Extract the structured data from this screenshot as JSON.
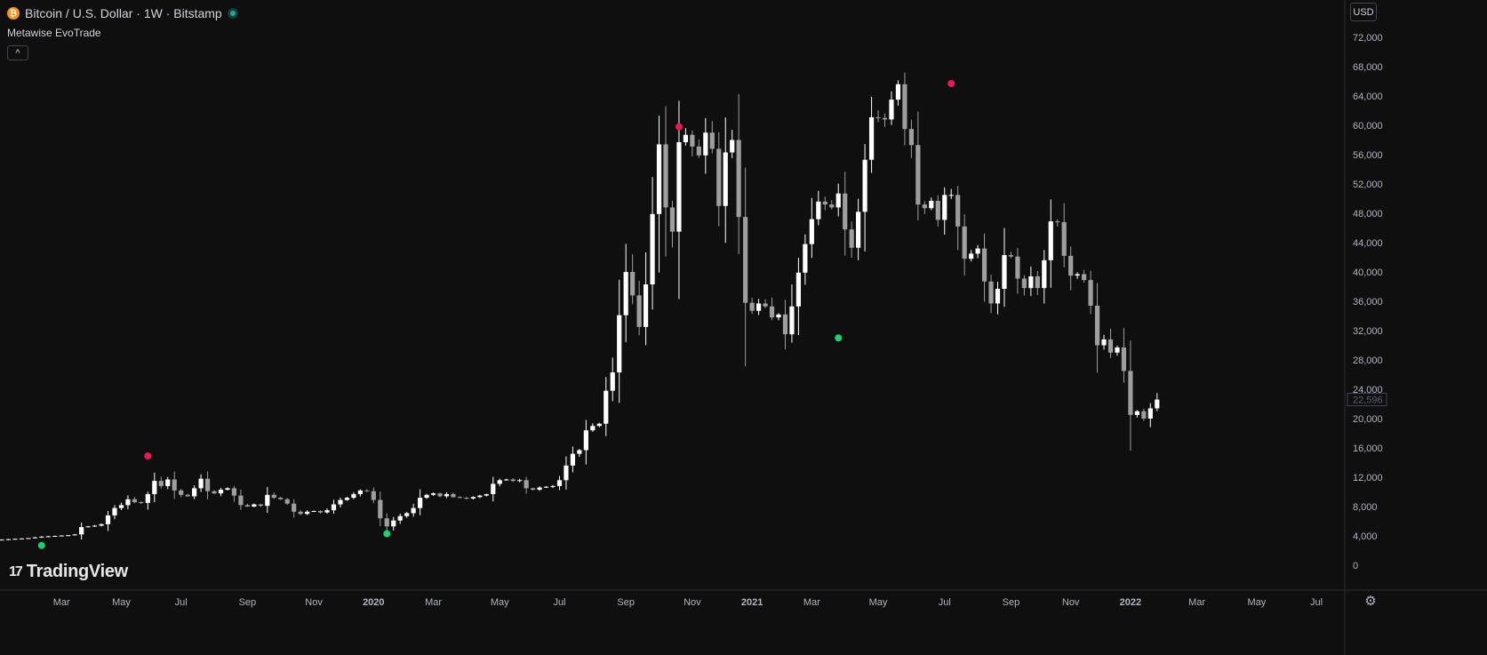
{
  "header": {
    "symbol_icon": "bitcoin-icon",
    "title": "Bitcoin / U.S. Dollar · 1W · Bitstamp",
    "status": "live-dot-icon"
  },
  "indicator": {
    "name": "Metawise EvoTrade",
    "collapse_icon": "chevron-up-icon"
  },
  "currency": {
    "label": "USD"
  },
  "logo": {
    "text": "TradingView"
  },
  "colors": {
    "background": "#0f0f0f",
    "up": "#ffffff",
    "down": "#9e9e9e",
    "sell_signal": "#f2164f",
    "buy_signal": "#1bd16b",
    "axis_text": "#b2b5be"
  },
  "chart_data": {
    "type": "candlestick",
    "interval": "1W",
    "title": "",
    "price_axis": {
      "ticks": [
        0,
        4000,
        8000,
        12000,
        16000,
        20000,
        24000,
        28000,
        32000,
        36000,
        40000,
        44000,
        48000,
        52000,
        56000,
        60000,
        64000,
        68000,
        72000
      ],
      "tick_labels": [
        "0",
        "4,000",
        "8,000",
        "12,000",
        "16,000",
        "20,000",
        "24,000",
        "28,000",
        "32,000",
        "36,000",
        "40,000",
        "44,000",
        "48,000",
        "52,000",
        "56,000",
        "60,000",
        "64,000",
        "68,000",
        "72,000"
      ],
      "last_price": 22596,
      "last_price_label": "22,596"
    },
    "time_axis": {
      "labels": [
        "Mar",
        "May",
        "Jul",
        "Sep",
        "Nov",
        "2020",
        "Mar",
        "May",
        "Jul",
        "Sep",
        "Nov",
        "2021",
        "Mar",
        "May",
        "Jul",
        "Sep",
        "Nov",
        "2022",
        "Mar",
        "May",
        "Jul"
      ],
      "week_index": [
        9,
        18,
        27,
        37,
        47,
        56,
        65,
        75,
        84,
        94,
        104,
        113,
        122,
        132,
        142,
        152,
        161,
        170,
        180,
        189,
        198
      ],
      "bold": [
        false,
        false,
        false,
        false,
        false,
        true,
        false,
        false,
        false,
        false,
        false,
        true,
        false,
        false,
        false,
        false,
        false,
        true,
        false,
        false,
        false
      ]
    },
    "closes": [
      3500,
      3550,
      3600,
      3650,
      3700,
      3800,
      3900,
      3950,
      4000,
      4050,
      4100,
      4200,
      5200,
      5300,
      5400,
      5600,
      6800,
      7800,
      8200,
      9000,
      8600,
      8500,
      9700,
      11500,
      10800,
      11700,
      10200,
      9600,
      9400,
      10500,
      11800,
      10100,
      9800,
      10300,
      10500,
      9500,
      8200,
      8000,
      8300,
      8100,
      9600,
      9200,
      9000,
      8400,
      7300,
      7000,
      7300,
      7400,
      7200,
      7500,
      8300,
      8900,
      9200,
      9700,
      10200,
      10100,
      8900,
      6400,
      5300,
      6100,
      6700,
      7100,
      7800,
      9200,
      9600,
      9800,
      9400,
      9700,
      9300,
      9200,
      9100,
      9300,
      9500,
      9700,
      11100,
      11600,
      11700,
      11500,
      11600,
      10500,
      10300,
      10600,
      10700,
      10800,
      11600,
      13600,
      15200,
      15700,
      18400,
      19000,
      19300,
      23800,
      26300,
      34100,
      40000,
      36800,
      32500,
      38300,
      47900,
      57400,
      48800,
      45500,
      57700,
      58700,
      57100,
      55900,
      59000,
      56800,
      49000,
      56300,
      58000,
      47500,
      35800,
      34700,
      35700,
      35300,
      33800,
      34200,
      31500,
      35300,
      39900,
      43800,
      47200,
      49600,
      49200,
      48800,
      50700,
      45800,
      43300,
      48200,
      55300,
      61100,
      61000,
      60800,
      63500,
      65600,
      59500,
      57300,
      49200,
      48700,
      49700,
      47100,
      50500,
      50500,
      46200,
      41800,
      42500,
      43200,
      38700,
      35700,
      37700,
      42300,
      42100,
      39100,
      37800,
      39400,
      37800,
      41600,
      46900,
      46800,
      42200,
      39500,
      39700,
      38900,
      35400,
      30000,
      30800,
      29000,
      29700,
      26500,
      20500,
      21000,
      20000,
      21400,
      22596
    ],
    "signals": [
      {
        "type": "sell",
        "week_index": 22,
        "price": 14900
      },
      {
        "type": "buy",
        "week_index": 6,
        "price": 2700
      },
      {
        "type": "buy",
        "week_index": 58,
        "price": 4300
      },
      {
        "type": "sell",
        "week_index": 102,
        "price": 59800
      },
      {
        "type": "buy",
        "week_index": 126,
        "price": 31000
      },
      {
        "type": "sell",
        "week_index": 143,
        "price": 65700
      }
    ]
  }
}
